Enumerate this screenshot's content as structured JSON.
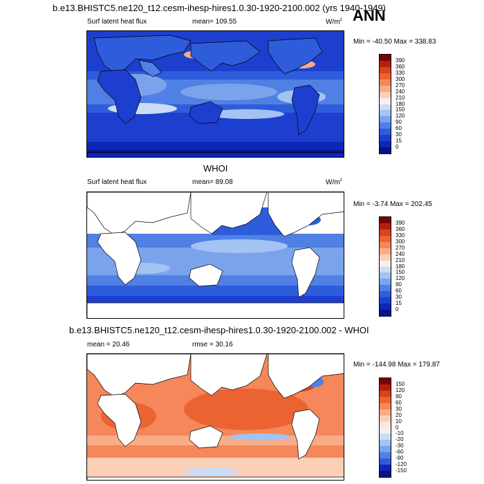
{
  "header": {
    "main_title": "b.e13.BHISTC5.ne120_t12.cesm-ihesp-hires1.0.30-1920-2100.002 (yrs 1940-1949)",
    "season": "ANN"
  },
  "panels": [
    {
      "id": "model",
      "variable": "Surf latent heat flux",
      "stat": "mean= 109.55",
      "units": "W/m",
      "units_sup": "2",
      "minmax": "Min = -40.50 Max = 338.83",
      "levels": [
        "390",
        "360",
        "330",
        "300",
        "270",
        "240",
        "210",
        "180",
        "150",
        "120",
        "90",
        "60",
        "30",
        "15",
        "0"
      ],
      "colors": [
        "#7a0403",
        "#b5200b",
        "#d9421a",
        "#ec6332",
        "#f5875a",
        "#f9ac86",
        "#fbd0b6",
        "#f4f0ef",
        "#cbdcf6",
        "#a3c3f2",
        "#7aa3ec",
        "#5080e4",
        "#2e5ddb",
        "#1d3fcf",
        "#0f25b8",
        "#041483"
      ]
    },
    {
      "id": "obs",
      "title": "WHOI",
      "variable": "Surf latent heat flux",
      "stat": "mean=  89.08",
      "units": "W/m",
      "units_sup": "2",
      "minmax": "Min =  -3.74 Max = 202.45",
      "levels": [
        "390",
        "360",
        "330",
        "300",
        "270",
        "240",
        "210",
        "180",
        "150",
        "120",
        "90",
        "60",
        "30",
        "15",
        "0"
      ],
      "colors": [
        "#7a0403",
        "#b5200b",
        "#d9421a",
        "#ec6332",
        "#f5875a",
        "#f9ac86",
        "#fbd0b6",
        "#f4f0ef",
        "#cbdcf6",
        "#a3c3f2",
        "#7aa3ec",
        "#5080e4",
        "#2e5ddb",
        "#1d3fcf",
        "#0f25b8",
        "#041483"
      ]
    },
    {
      "id": "diff",
      "title": "b.e13.BHISTC5.ne120_t12.cesm-ihesp-hires1.0.30-1920-2100.002 - WHOI",
      "stat": "mean =  20.46",
      "rmse": "rmse =  30.16",
      "minmax": "Min = -144.98 Max = 179.87",
      "levels": [
        "150",
        "120",
        "90",
        "60",
        "30",
        "20",
        "10",
        "0",
        "-10",
        "-20",
        "-30",
        "-60",
        "-90",
        "-120",
        "-150"
      ],
      "colors": [
        "#7a0403",
        "#b5200b",
        "#d9421a",
        "#ec6332",
        "#f5875a",
        "#f9ac86",
        "#fbd0b6",
        "#fce6da",
        "#f4f0ef",
        "#cbdcf6",
        "#a3c3f2",
        "#7aa3ec",
        "#5080e4",
        "#2e5ddb",
        "#0f25b8",
        "#041483"
      ]
    }
  ]
}
